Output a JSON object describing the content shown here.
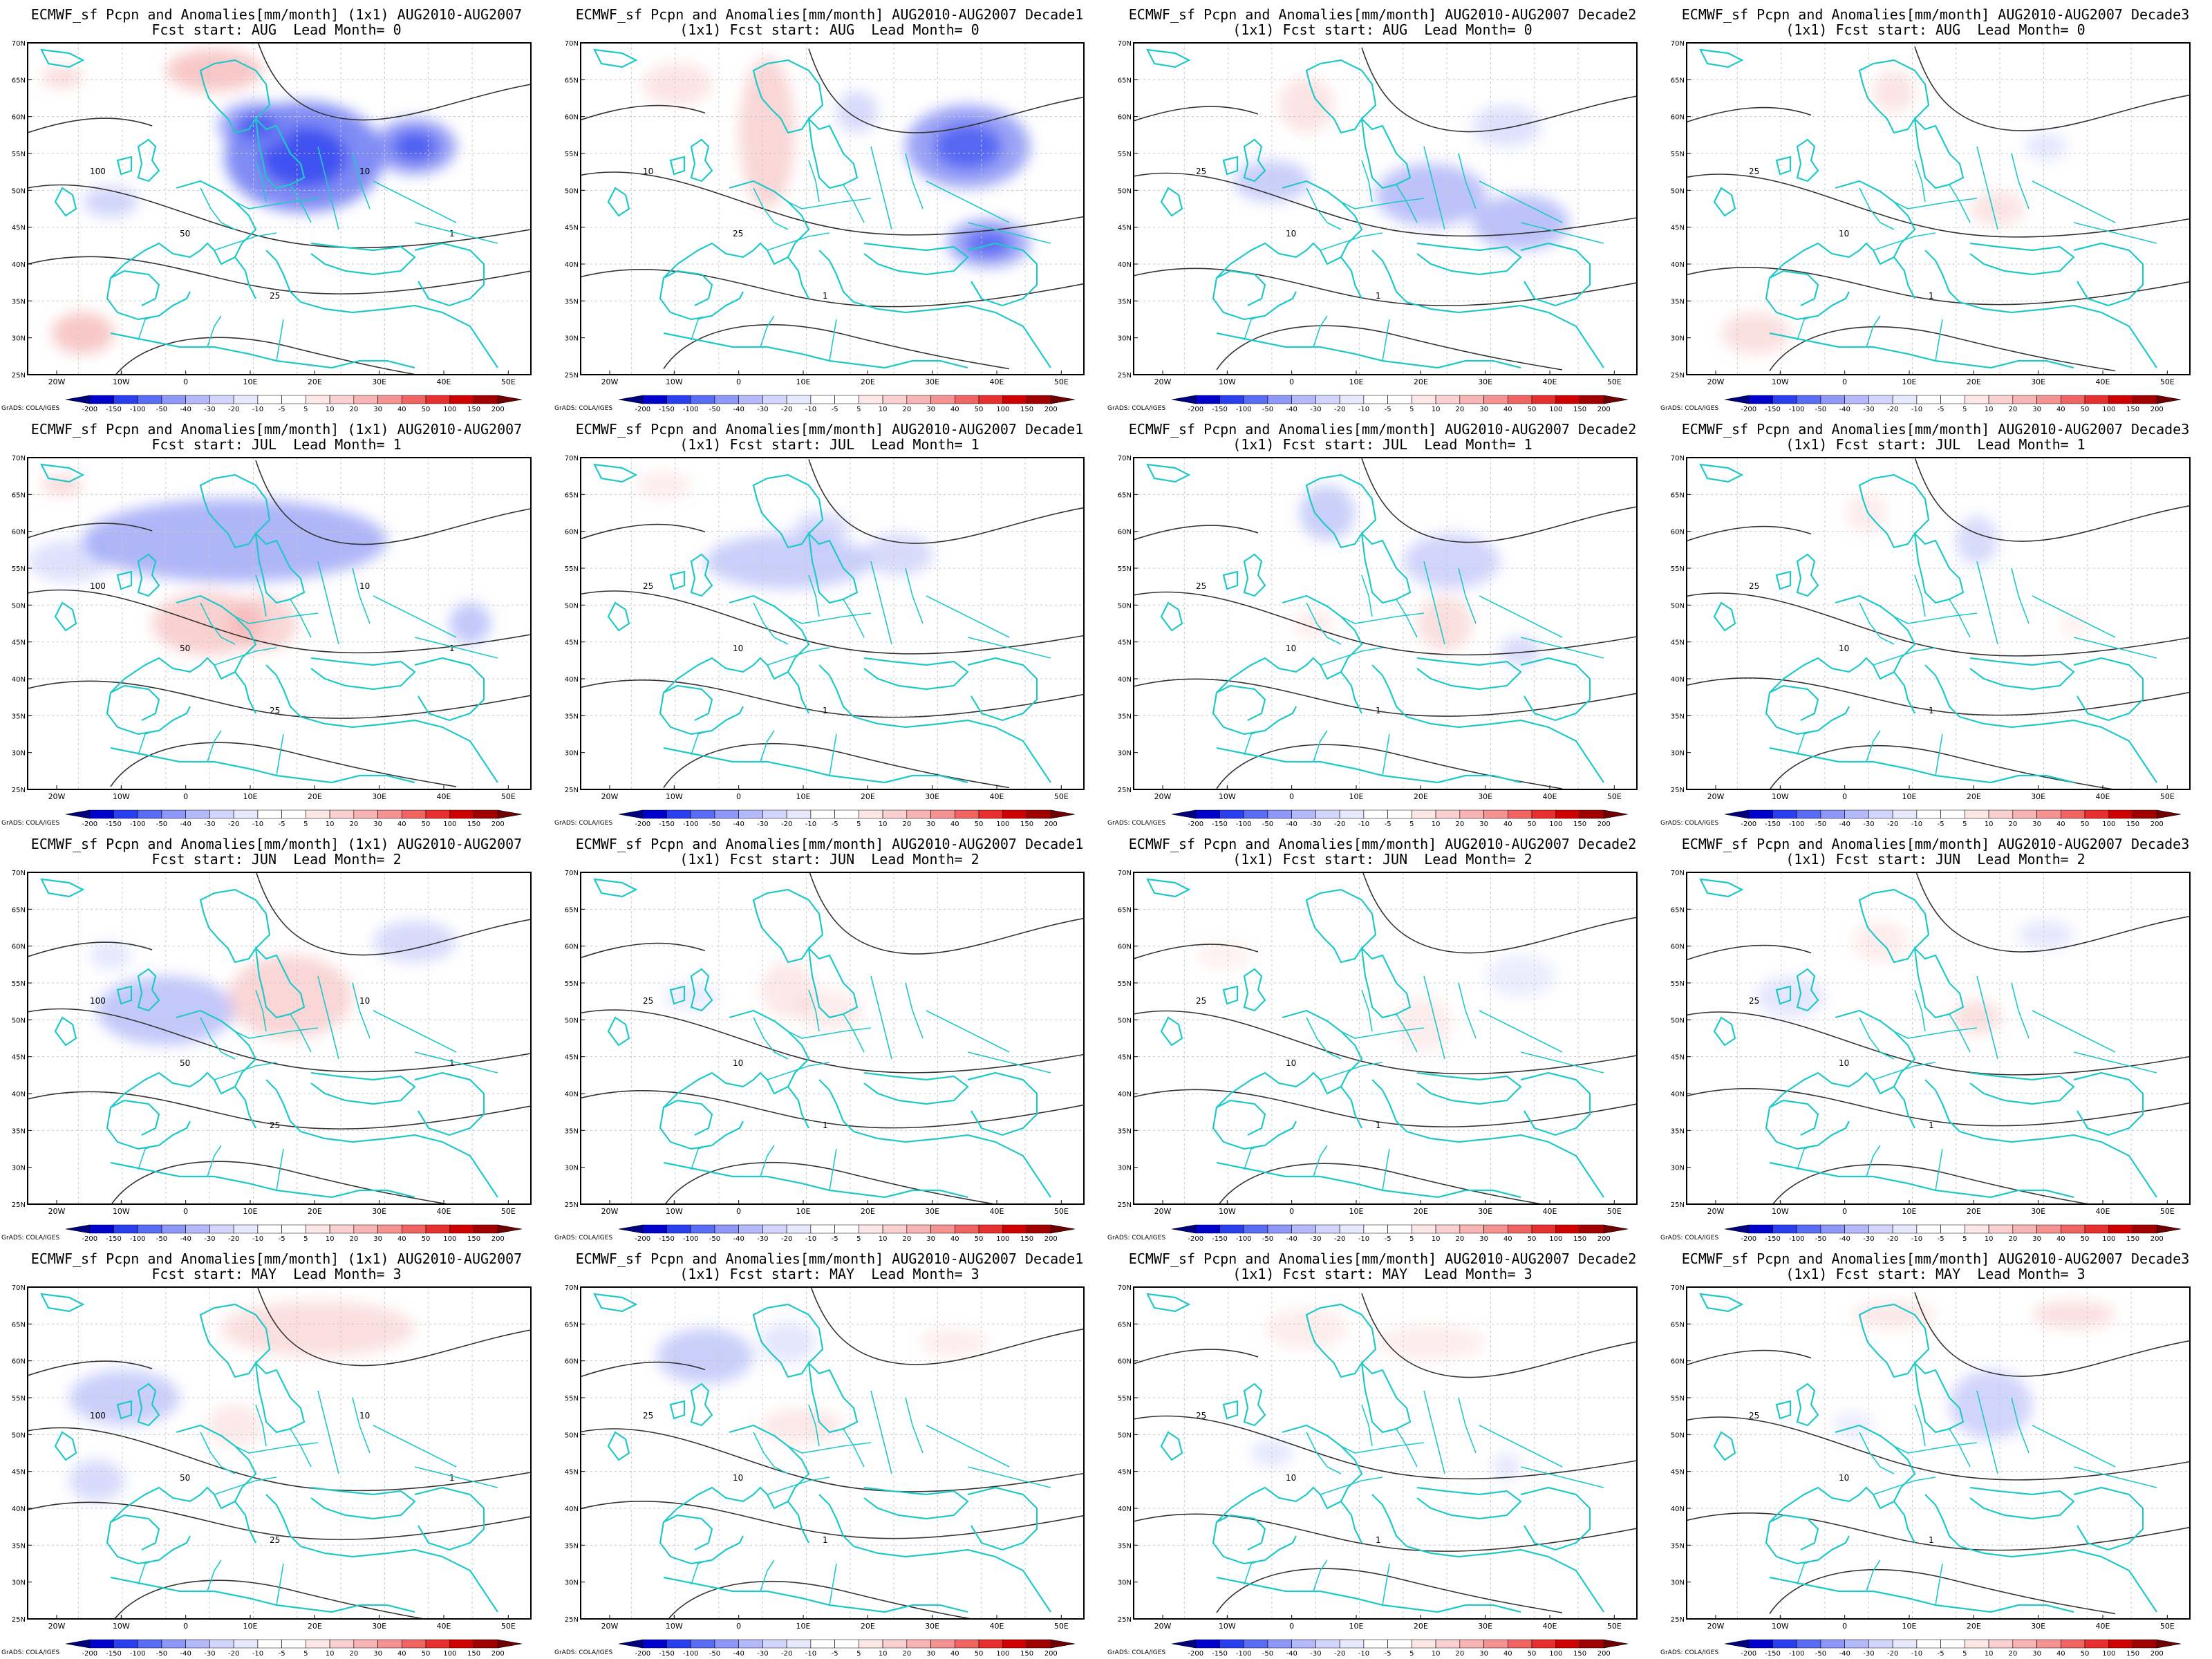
{
  "colors": {
    "coast": "#20c8c8",
    "contour": "#333333",
    "grid": "#c8c8c8",
    "scale": [
      "#000080",
      "#0000cd",
      "#2a3ff0",
      "#5a6ef5",
      "#8d98f8",
      "#b3b9fa",
      "#d2d5fc",
      "#e7e9fd",
      "#ffffff",
      "#ffffff",
      "#fde6e6",
      "#fbd0d0",
      "#f8b4b4",
      "#f59292",
      "#f06464",
      "#e83030",
      "#d00000",
      "#a00000",
      "#700000"
    ],
    "neg_fill": "#7a86f3",
    "pos_fill": "#f4a4a4"
  },
  "colorbar_labels": [
    "-200",
    "-150",
    "-100",
    "-50",
    "-40",
    "-30",
    "-20",
    "-10",
    "-5",
    "5",
    "10",
    "20",
    "30",
    "40",
    "50",
    "100",
    "150",
    "200"
  ],
  "credit": "GrADS: COLA/IGES",
  "lat_labels": [
    "70N",
    "65N",
    "60N",
    "55N",
    "50N",
    "45N",
    "40N",
    "35N",
    "30N",
    "25N"
  ],
  "lon_labels": [
    "20W",
    "10W",
    "0",
    "10E",
    "20E",
    "30E",
    "40E",
    "50E"
  ],
  "panels": [
    {
      "line1": "ECMWF_sf Pcpn and Anomalies[mm/month] (1x1) AUG2010-AUG2007",
      "line2": "Fcst start: AUG  Lead Month= 0",
      "contour_labels": [
        "100",
        "50",
        "25",
        "10",
        "1"
      ]
    },
    {
      "line1": "ECMWF_sf Pcpn and Anomalies[mm/month] AUG2010-AUG2007 Decade1",
      "line2": "(1x1) Fcst start: AUG  Lead Month= 0",
      "contour_labels": [
        "10",
        "25",
        "1"
      ]
    },
    {
      "line1": "ECMWF_sf Pcpn and Anomalies[mm/month] AUG2010-AUG2007 Decade2",
      "line2": "(1x1) Fcst start: AUG  Lead Month= 0",
      "contour_labels": [
        "25",
        "10",
        "1"
      ]
    },
    {
      "line1": "ECMWF_sf Pcpn and Anomalies[mm/month] AUG2010-AUG2007 Decade3",
      "line2": "(1x1) Fcst start: AUG  Lead Month= 0",
      "contour_labels": [
        "25",
        "10",
        "1"
      ]
    },
    {
      "line1": "ECMWF_sf Pcpn and Anomalies[mm/month] (1x1) AUG2010-AUG2007",
      "line2": "Fcst start: JUL  Lead Month= 1",
      "contour_labels": [
        "100",
        "50",
        "25",
        "10",
        "1"
      ]
    },
    {
      "line1": "ECMWF_sf Pcpn and Anomalies[mm/month] AUG2010-AUG2007 Decade1",
      "line2": "(1x1) Fcst start: JUL  Lead Month= 1",
      "contour_labels": [
        "25",
        "10",
        "1"
      ]
    },
    {
      "line1": "ECMWF_sf Pcpn and Anomalies[mm/month] AUG2010-AUG2007 Decade2",
      "line2": "(1x1) Fcst start: JUL  Lead Month= 1",
      "contour_labels": [
        "25",
        "10",
        "1"
      ]
    },
    {
      "line1": "ECMWF_sf Pcpn and Anomalies[mm/month] AUG2010-AUG2007 Decade3",
      "line2": "(1x1) Fcst start: JUL  Lead Month= 1",
      "contour_labels": [
        "25",
        "10",
        "1"
      ]
    },
    {
      "line1": "ECMWF_sf Pcpn and Anomalies[mm/month] (1x1) AUG2010-AUG2007",
      "line2": "Fcst start: JUN  Lead Month= 2",
      "contour_labels": [
        "100",
        "50",
        "25",
        "10",
        "1"
      ]
    },
    {
      "line1": "ECMWF_sf Pcpn and Anomalies[mm/month] AUG2010-AUG2007 Decade1",
      "line2": "(1x1) Fcst start: JUN  Lead Month= 2",
      "contour_labels": [
        "25",
        "10",
        "1"
      ]
    },
    {
      "line1": "ECMWF_sf Pcpn and Anomalies[mm/month] AUG2010-AUG2007 Decade2",
      "line2": "(1x1) Fcst start: JUN  Lead Month= 2",
      "contour_labels": [
        "25",
        "10",
        "1"
      ]
    },
    {
      "line1": "ECMWF_sf Pcpn and Anomalies[mm/month] AUG2010-AUG2007 Decade3",
      "line2": "(1x1) Fcst start: JUN  Lead Month= 2",
      "contour_labels": [
        "25",
        "10",
        "1"
      ]
    },
    {
      "line1": "ECMWF_sf Pcpn and Anomalies[mm/month] (1x1) AUG2010-AUG2007",
      "line2": "Fcst start: MAY  Lead Month= 3",
      "contour_labels": [
        "100",
        "50",
        "25",
        "10",
        "1"
      ]
    },
    {
      "line1": "ECMWF_sf Pcpn and Anomalies[mm/month] AUG2010-AUG2007 Decade1",
      "line2": "(1x1) Fcst start: MAY  Lead Month= 3",
      "contour_labels": [
        "25",
        "10",
        "1"
      ]
    },
    {
      "line1": "ECMWF_sf Pcpn and Anomalies[mm/month] AUG2010-AUG2007 Decade2",
      "line2": "(1x1) Fcst start: MAY  Lead Month= 3",
      "contour_labels": [
        "25",
        "10",
        "1"
      ]
    },
    {
      "line1": "ECMWF_sf Pcpn and Anomalies[mm/month] AUG2010-AUG2007 Decade3",
      "line2": "(1x1) Fcst start: MAY  Lead Month= 3",
      "contour_labels": [
        "25",
        "10",
        "1"
      ]
    }
  ]
}
